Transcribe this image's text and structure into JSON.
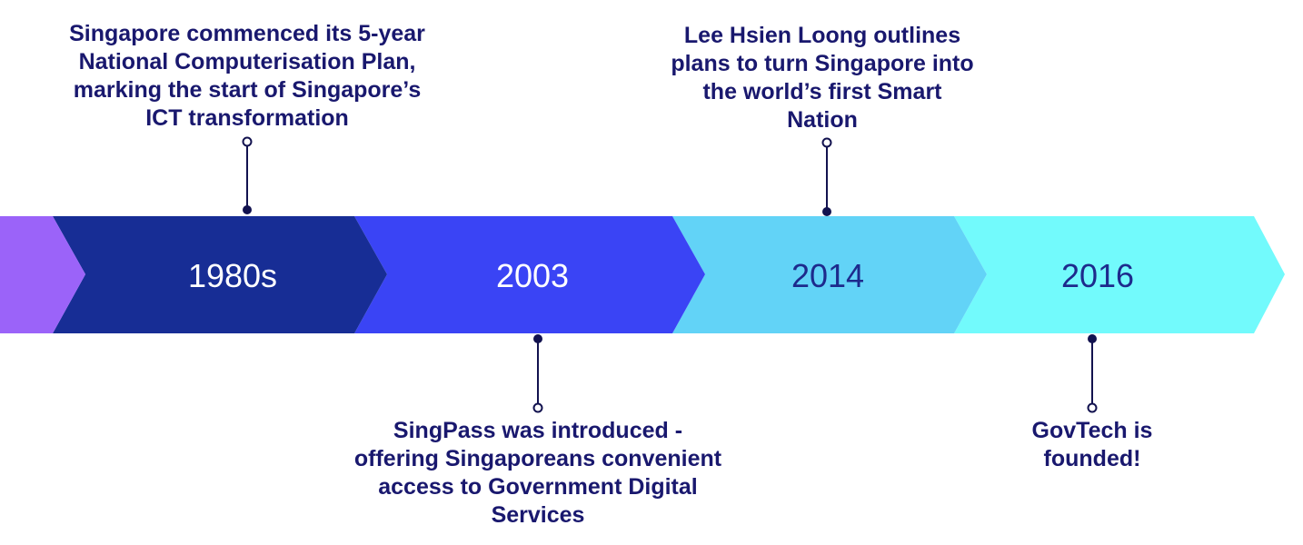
{
  "colors": {
    "lead_segment": "#9b63f9",
    "navy_text": "#19186e",
    "connector": "#12124f",
    "era_label_light": "#ffffff",
    "era_label_dark": "#1d2a8c"
  },
  "eras": [
    {
      "label": "1980s",
      "fill": "#172d95",
      "label_color": "#ffffff"
    },
    {
      "label": "2003",
      "fill": "#3a44f5",
      "label_color": "#ffffff"
    },
    {
      "label": "2014",
      "fill": "#62d3f7",
      "label_color": "#1d2a8c"
    },
    {
      "label": "2016",
      "fill": "#72fafc",
      "label_color": "#1d2a8c"
    }
  ],
  "events": [
    {
      "era": "1980s",
      "position": "above",
      "lines": [
        "Singapore commenced its 5-year",
        "National Computerisation Plan,",
        "marking the start of Singapore’s",
        "ICT transformation"
      ]
    },
    {
      "era": "2003",
      "position": "below",
      "lines": [
        "SingPass was introduced -",
        "offering Singaporeans convenient",
        "access to Government Digital",
        "Services"
      ]
    },
    {
      "era": "2014",
      "position": "above",
      "lines": [
        "Lee Hsien Loong outlines",
        "plans to turn Singapore into",
        "the world’s first Smart",
        "Nation"
      ]
    },
    {
      "era": "2016",
      "position": "below",
      "lines": [
        "GovTech is",
        "founded!"
      ]
    }
  ]
}
